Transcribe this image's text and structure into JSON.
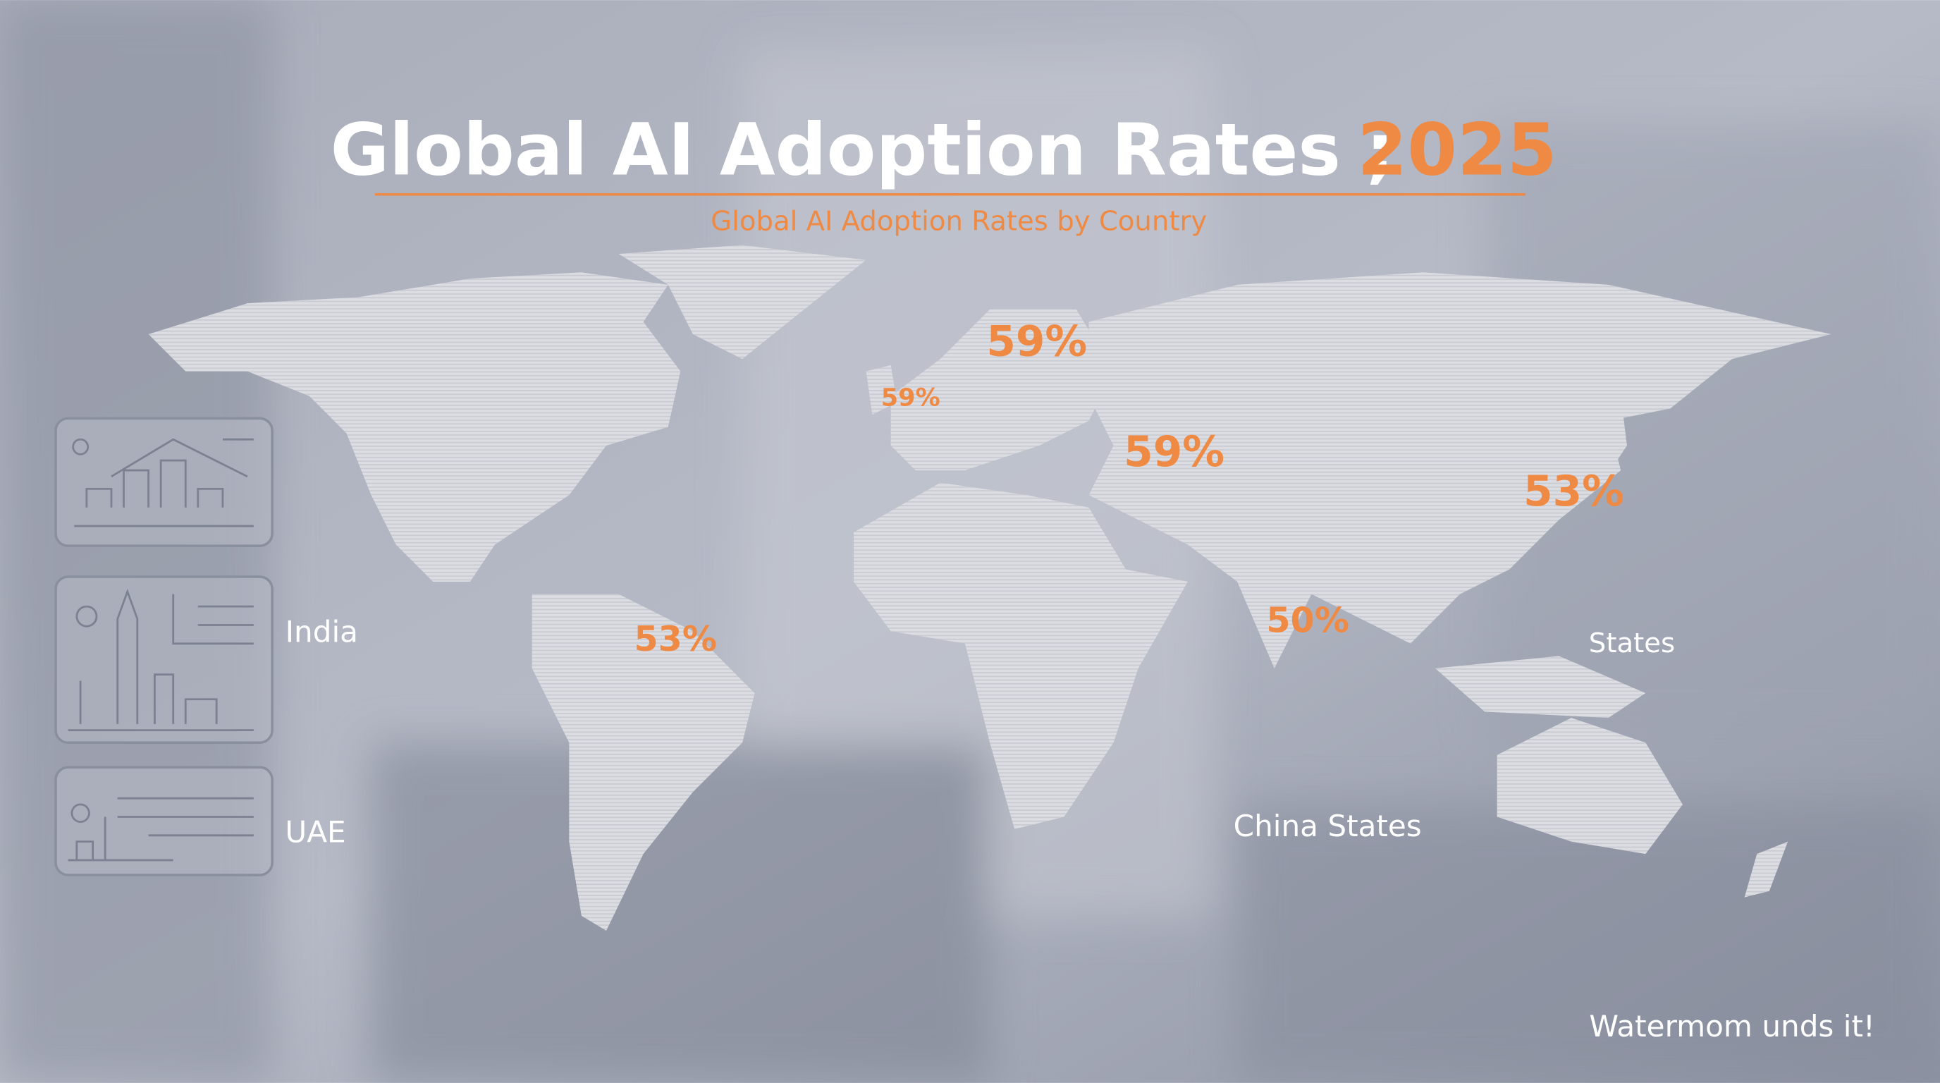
{
  "header": {
    "title": "Global AI Adoption Rates ;",
    "year": "2025",
    "subtitle": "Global AI Adoption Rates by Country"
  },
  "map": {
    "labels": [
      "59%",
      "59%",
      "59%",
      "53%",
      "53%",
      "50%",
      "States",
      "China States"
    ]
  },
  "side_labels": [
    "India",
    "UAE"
  ],
  "footer": {
    "watermark": "Watermom unds it!"
  }
}
